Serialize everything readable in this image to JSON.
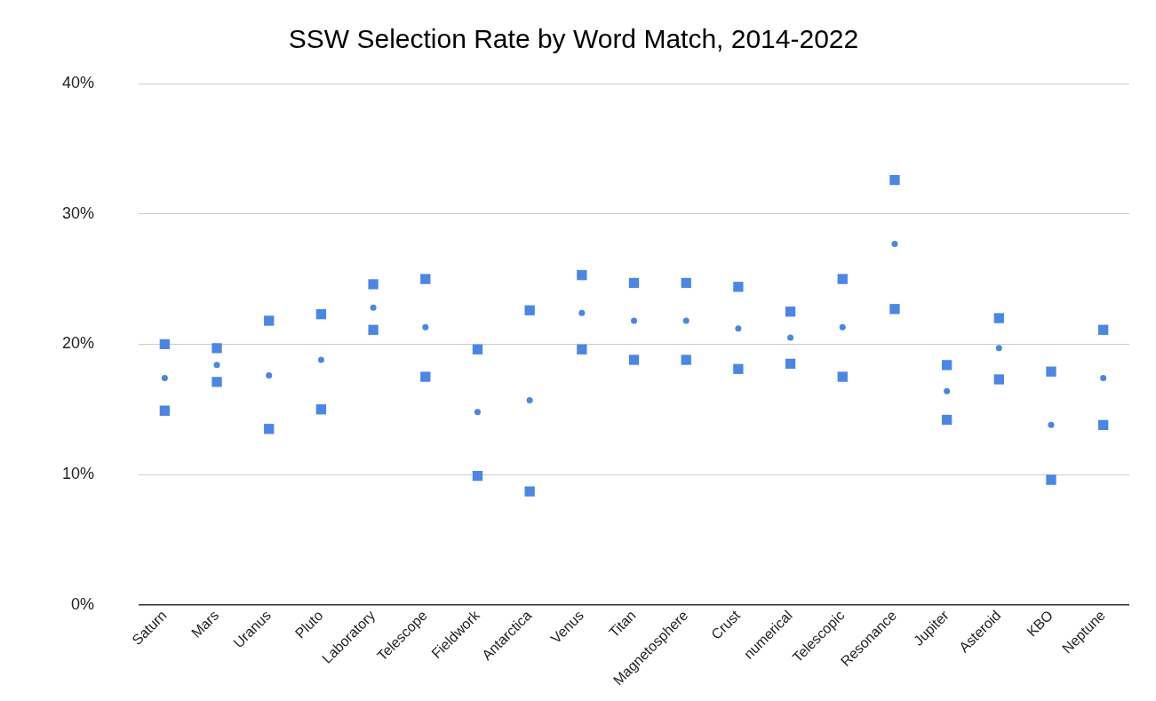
{
  "chart_data": {
    "type": "scatter",
    "title": "SSW Selection Rate by Word Match, 2014-2022",
    "categories": [
      "Saturn",
      "Mars",
      "Uranus",
      "Pluto",
      "Laboratory",
      "Telescope",
      "Fieldwork",
      "Antarctica",
      "Venus",
      "Titan",
      "Magnetosphere",
      "Crust",
      "numerical",
      "Telescopic",
      "Resonance",
      "Jupiter",
      "Asteroid",
      "KBO",
      "Neptune"
    ],
    "series": [
      {
        "color": "#4a86e8",
        "marker": "square",
        "values": [
          20.0,
          19.7,
          21.8,
          22.3,
          24.6,
          25.0,
          19.6,
          22.6,
          25.3,
          24.7,
          24.7,
          24.4,
          22.5,
          25.0,
          32.6,
          18.4,
          22.0,
          17.9,
          21.1
        ]
      },
      {
        "color": "#4a86e8",
        "marker": "circle",
        "values": [
          17.4,
          18.4,
          17.6,
          18.8,
          22.8,
          21.3,
          14.8,
          15.7,
          22.4,
          21.8,
          21.8,
          21.2,
          20.5,
          21.3,
          27.7,
          16.4,
          19.7,
          13.8,
          17.4
        ]
      },
      {
        "color": "#4a86e8",
        "marker": "square",
        "values": [
          14.9,
          17.1,
          13.5,
          15.0,
          21.1,
          17.5,
          9.9,
          8.7,
          19.6,
          18.8,
          18.8,
          18.1,
          18.5,
          17.5,
          22.7,
          14.2,
          17.3,
          9.6,
          13.8
        ]
      }
    ],
    "ylim": [
      0,
      40
    ],
    "yticks": [
      {
        "value": 0,
        "label": "0%"
      },
      {
        "value": 10,
        "label": "10%"
      },
      {
        "value": 20,
        "label": "20%"
      },
      {
        "value": 30,
        "label": "30%"
      },
      {
        "value": 40,
        "label": "40%"
      }
    ],
    "grid": "y"
  }
}
